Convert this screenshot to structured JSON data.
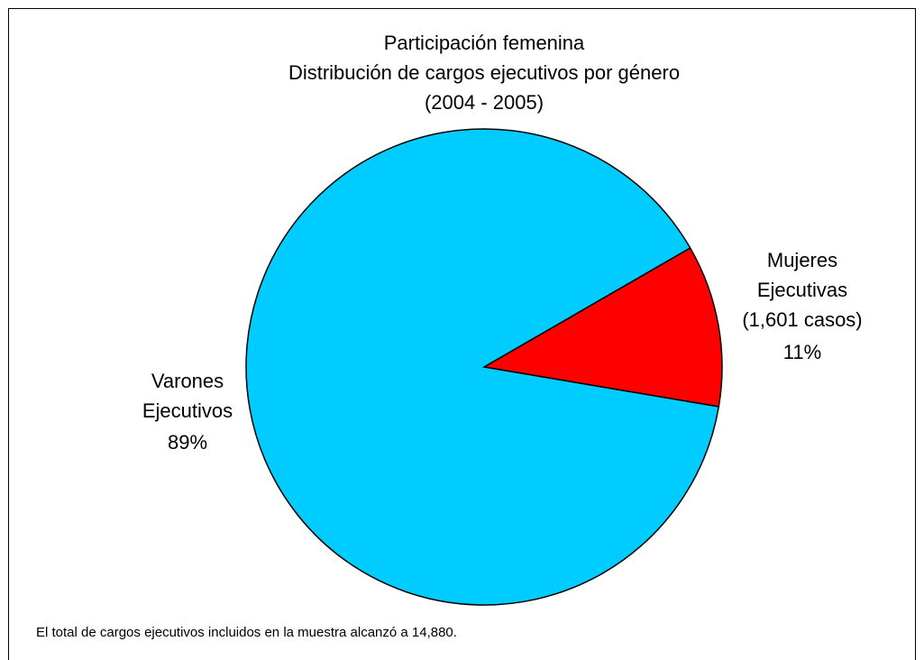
{
  "chart_data": {
    "type": "pie",
    "title": [
      "Participación femenina",
      "Distribución de cargos ejecutivos por género",
      "(2004 - 2005)"
    ],
    "categories": [
      [
        "Mujeres",
        "Ejecutivas",
        "(1,601 casos)"
      ],
      [
        "Varones",
        "Ejecutivos"
      ]
    ],
    "values": [
      11,
      89
    ],
    "value_labels": [
      "11%",
      "89%"
    ],
    "colors": [
      "#ff0000",
      "#00ccff"
    ],
    "annotation": "El total de cargos ejecutivos incluidos en la muestra alcanzó a 14,880."
  }
}
